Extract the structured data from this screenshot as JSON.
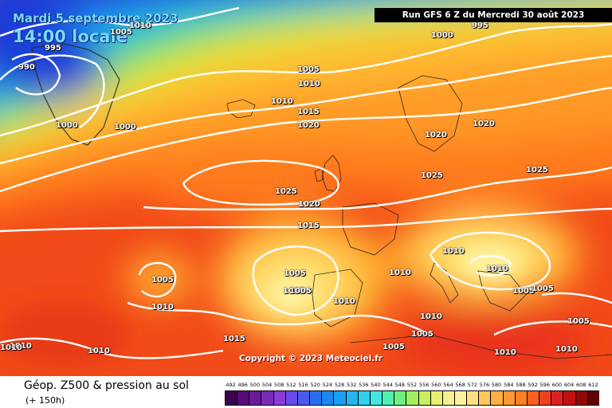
{
  "header": {
    "date": "Mardi 5 septembre 2023",
    "time": "14:00 locale",
    "run": "Run GFS 6 Z du Mercredi 30 août 2023"
  },
  "copyright": "Copyright © 2023 Meteociel.fr",
  "footer": {
    "title": "Géop. Z500 & pression au sol",
    "step": "(+ 150h)"
  },
  "isobar_labels": [
    "1010",
    "1005",
    "995",
    "990",
    "1000",
    "1000",
    "1000",
    "995",
    "1005",
    "1010",
    "1010",
    "1015",
    "1020",
    "1020",
    "1020",
    "1025",
    "1025",
    "1025",
    "1020",
    "1015",
    "1005",
    "1005",
    "1010",
    "1010",
    "1010",
    "1010",
    "1005",
    "1005",
    "1005",
    "1010",
    "1015",
    "1010",
    "1010",
    "1005",
    "1005",
    "1010",
    "1005",
    "1010",
    "1010",
    "1010",
    "1005"
  ],
  "colorbar": {
    "ticks": [
      "492",
      "496",
      "500",
      "504",
      "508",
      "512",
      "516",
      "520",
      "524",
      "528",
      "532",
      "536",
      "540",
      "544",
      "548",
      "552",
      "556",
      "560",
      "564",
      "568",
      "572",
      "576",
      "580",
      "584",
      "588",
      "592",
      "596",
      "600",
      "604",
      "608",
      "612"
    ],
    "colors": [
      "#3a0050",
      "#5a0a7a",
      "#6a1a9a",
      "#7a2ab8",
      "#8a3ad8",
      "#6a4ae8",
      "#4a5af0",
      "#2a6ef0",
      "#1a86f0",
      "#1aa0f0",
      "#20b8f0",
      "#30d0f0",
      "#40e8e0",
      "#50f0b0",
      "#70f080",
      "#a0f060",
      "#c8f060",
      "#e8f070",
      "#f8f090",
      "#fff0a0",
      "#ffe080",
      "#ffc860",
      "#ffb040",
      "#ff9830",
      "#ff8020",
      "#f86020",
      "#f04020",
      "#e02020",
      "#c01010",
      "#900808",
      "#600000"
    ]
  }
}
